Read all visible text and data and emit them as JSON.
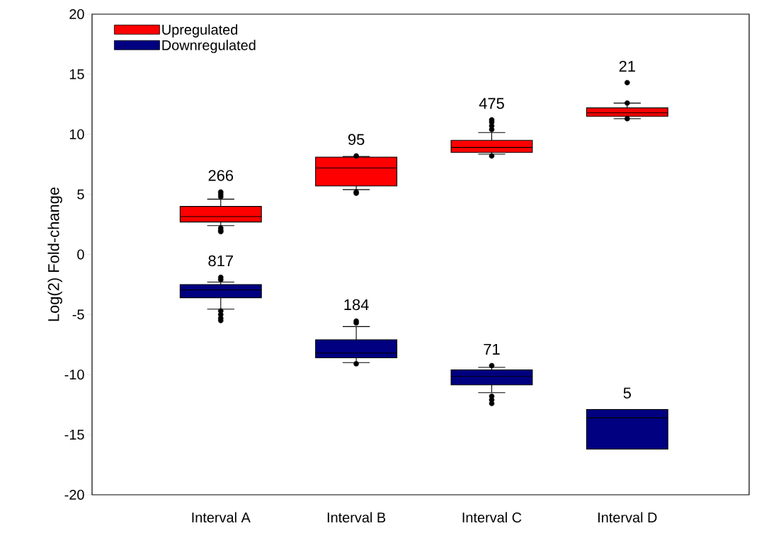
{
  "chart_data": {
    "type": "box",
    "ylabel": "Log(2) Fold-change",
    "legend": "top left",
    "categories": [
      "Interval A",
      "Interval B",
      "Interval C",
      "Interval D"
    ],
    "ylim": [
      -20,
      20
    ],
    "yticks": [
      -20,
      -15,
      -10,
      -5,
      0,
      5,
      10,
      15,
      20
    ],
    "series": [
      {
        "name": "Upregulated",
        "color": "#ff0000",
        "boxes": [
          {
            "low": 2.4,
            "q1": 2.7,
            "median": 3.15,
            "q3": 4.0,
            "high": 4.6,
            "outliers": [
              4.8,
              5.0,
              5.2,
              2.2,
              2.0,
              1.9
            ]
          },
          {
            "low": 5.4,
            "q1": 5.7,
            "median": 7.2,
            "q3": 8.1,
            "high": 8.15,
            "outliers": [
              8.2,
              5.2,
              5.1
            ]
          },
          {
            "low": 8.35,
            "q1": 8.5,
            "median": 8.9,
            "q3": 9.5,
            "high": 10.15,
            "outliers": [
              10.4,
              10.7,
              11.0,
              11.2,
              8.2
            ]
          },
          {
            "low": 11.3,
            "q1": 11.5,
            "median": 11.8,
            "q3": 12.2,
            "high": 12.6,
            "outliers": [
              14.3,
              12.6,
              11.3
            ]
          }
        ]
      },
      {
        "name": "Downregulated",
        "color": "#000080",
        "boxes": [
          {
            "low": -4.55,
            "q1": -3.6,
            "median": -2.95,
            "q3": -2.5,
            "high": -2.3,
            "outliers": [
              -1.9,
              -2.1,
              -4.7,
              -5.0,
              -5.3,
              -5.5
            ]
          },
          {
            "low": -9.0,
            "q1": -8.6,
            "median": -8.2,
            "q3": -7.1,
            "high": -6.0,
            "outliers": [
              -5.7,
              -5.55,
              -9.1
            ]
          },
          {
            "low": -11.5,
            "q1": -10.85,
            "median": -10.15,
            "q3": -9.6,
            "high": -9.4,
            "outliers": [
              -9.25,
              -11.8,
              -12.1,
              -12.4
            ]
          },
          {
            "low": -16.2,
            "q1": -16.2,
            "median": -13.6,
            "q3": -12.9,
            "high": -12.9
          }
        ]
      }
    ],
    "annotations": [
      "266",
      "817",
      "95",
      "184",
      "475",
      "71",
      "21",
      "5"
    ]
  }
}
